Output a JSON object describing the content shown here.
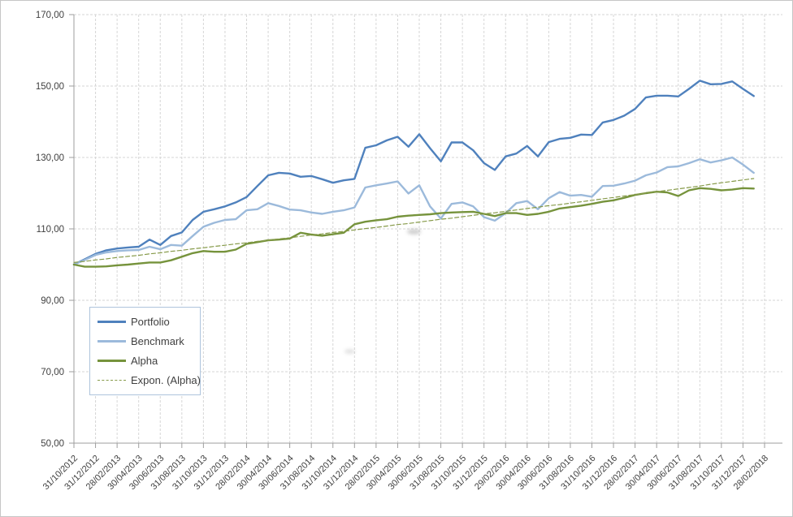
{
  "window": {
    "background": "#ffffff",
    "border_color": "#c6c6c6"
  },
  "legend": {
    "items": [
      {
        "label": "Portfolio",
        "color": "#4F81BD",
        "dashed": false
      },
      {
        "label": "Benchmark",
        "color": "#9CBADB",
        "dashed": false
      },
      {
        "label": "Alpha",
        "color": "#76933C",
        "dashed": false
      },
      {
        "label": "Expon. (Alpha)",
        "color": "#869A49",
        "dashed": true
      }
    ]
  },
  "chart_data": {
    "type": "line",
    "title": "",
    "xlabel": "",
    "ylabel": "",
    "ylim": [
      50,
      170
    ],
    "ytick_step": 20,
    "grid": "dashed horizontal and vertical gridlines",
    "legend_position": "inset lower-left",
    "x_note": "monthly data points from 31/10/2012 to 31/01/2018; axis ticks and labels every 2 months; last labeled category 28/02/2018 has no data point",
    "x_tick_labels": [
      "31/10/2012",
      "31/12/2012",
      "28/02/2013",
      "30/04/2013",
      "30/06/2013",
      "31/08/2013",
      "31/10/2013",
      "31/12/2013",
      "28/02/2014",
      "30/04/2014",
      "30/06/2014",
      "31/08/2014",
      "31/10/2014",
      "31/12/2014",
      "28/02/2015",
      "30/04/2015",
      "30/06/2015",
      "31/08/2015",
      "31/10/2015",
      "31/12/2015",
      "29/02/2016",
      "30/04/2016",
      "30/06/2016",
      "31/08/2016",
      "31/10/2016",
      "31/12/2016",
      "28/02/2017",
      "30/04/2017",
      "30/06/2017",
      "31/08/2017",
      "31/10/2017",
      "31/12/2017",
      "28/02/2018"
    ],
    "y_ticks": [
      {
        "label": "170,00",
        "value": 170
      },
      {
        "label": "150,00",
        "value": 150
      },
      {
        "label": "130,00",
        "value": 130
      },
      {
        "label": "110,00",
        "value": 110
      },
      {
        "label": "90,00",
        "value": 90
      },
      {
        "label": "70,00",
        "value": 70
      },
      {
        "label": "50,00",
        "value": 50
      }
    ],
    "series": [
      {
        "name": "Portfolio",
        "color": "#4F81BD",
        "dashed": false,
        "trendline": false,
        "values": [
          100,
          101.5,
          103,
          104,
          104.5,
          104.8,
          105,
          107,
          105.5,
          108,
          109,
          112.5,
          114.8,
          115.5,
          116.3,
          117.4,
          118.9,
          122,
          125,
          125.7,
          125.5,
          124.6,
          124.8,
          123.9,
          122.9,
          123.6,
          124,
          132.7,
          133.4,
          134.8,
          135.8,
          133,
          136.5,
          132.6,
          128.9,
          134.2,
          134.2,
          132,
          128.4,
          126.5,
          130.3,
          131.1,
          133.2,
          130.3,
          134.3,
          135.2,
          135.5,
          136.4,
          136.3,
          139.8,
          140.5,
          141.7,
          143.6,
          146.8,
          147.3,
          147.3,
          147.1,
          149.2,
          151.5,
          150.5,
          150.6,
          151.3,
          149.2,
          147.2
        ]
      },
      {
        "name": "Benchmark",
        "color": "#9CBADB",
        "dashed": false,
        "trendline": false,
        "values": [
          100,
          101.3,
          102.7,
          103.4,
          103.8,
          104,
          104.1,
          105,
          104.3,
          105.5,
          105.3,
          108,
          110.6,
          111.7,
          112.5,
          112.7,
          115.2,
          115.5,
          117.2,
          116.4,
          115.4,
          115.2,
          114.6,
          114.2,
          114.8,
          115.2,
          116,
          121.6,
          122.2,
          122.7,
          123.3,
          119.9,
          122.2,
          116.3,
          112.9,
          117,
          117.4,
          116.3,
          113.3,
          112.3,
          114.4,
          117.2,
          117.8,
          115.5,
          118.6,
          120.3,
          119.3,
          119.5,
          119,
          122,
          122.1,
          122.7,
          123.5,
          125,
          125.8,
          127.3,
          127.5,
          128.4,
          129.5,
          128.6,
          129.2,
          130,
          128,
          125.7
        ]
      },
      {
        "name": "Alpha",
        "color": "#76933C",
        "dashed": false,
        "trendline": false,
        "values": [
          100,
          99.4,
          99.4,
          99.5,
          99.8,
          100,
          100.3,
          100.6,
          100.6,
          101.2,
          102.2,
          103.2,
          103.8,
          103.6,
          103.6,
          104.2,
          105.8,
          106.3,
          106.8,
          107,
          107.3,
          108.9,
          108.4,
          108.1,
          108.5,
          108.9,
          111.3,
          112,
          112.4,
          112.7,
          113.4,
          113.7,
          113.9,
          114.1,
          114.4,
          114.6,
          114.7,
          114.8,
          114.2,
          113.6,
          114.4,
          114.4,
          113.9,
          114.2,
          114.8,
          115.7,
          116.1,
          116.5,
          117,
          117.6,
          118,
          118.7,
          119.5,
          120,
          120.4,
          120.2,
          119.2,
          120.8,
          121.4,
          121.2,
          120.8,
          121,
          121.4,
          121.3
        ]
      },
      {
        "name": "Expon. (Alpha)",
        "color": "#869A49",
        "dashed": true,
        "trendline": true,
        "values": [
          100.6,
          100.9,
          101.3,
          101.6,
          102,
          102.3,
          102.6,
          103,
          103.3,
          103.7,
          104,
          104.4,
          104.7,
          105.1,
          105.4,
          105.8,
          106.1,
          106.5,
          106.8,
          107.2,
          107.5,
          107.9,
          108.3,
          108.6,
          109,
          109.3,
          109.7,
          110.1,
          110.4,
          110.8,
          111.2,
          111.5,
          111.9,
          112.3,
          112.7,
          113,
          113.4,
          113.8,
          114.2,
          114.5,
          114.9,
          115.3,
          115.7,
          116.1,
          116.5,
          116.8,
          117.2,
          117.6,
          118,
          118.4,
          118.8,
          119.2,
          119.6,
          120,
          120.4,
          120.8,
          121.2,
          121.6,
          122,
          122.5,
          122.9,
          123.3,
          123.7,
          124.1
        ]
      }
    ],
    "style": {
      "gridline_color": "#d6d6d6",
      "axis_color": "#9e9e9e",
      "text_color": "#404040"
    }
  }
}
